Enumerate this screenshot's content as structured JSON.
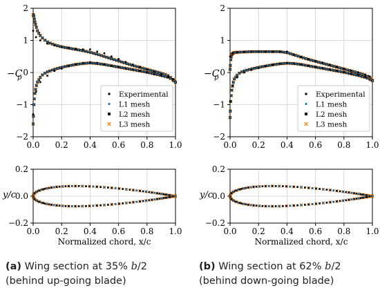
{
  "chart_data": [
    {
      "id": "a_cp",
      "type": "scatter",
      "ylabel": "−C",
      "ylabel_sub": "p",
      "xlim": [
        0,
        1
      ],
      "ylim": [
        -2,
        2
      ],
      "xticks": [
        "0.0",
        "0.2",
        "0.4",
        "0.6",
        "0.8",
        "1.0"
      ],
      "yticks": [
        "2",
        "1",
        "0",
        "−1",
        "−2"
      ],
      "grid": true,
      "legend_position": "lower-right",
      "legend": [
        "Experimental",
        "L1 mesh",
        "L2 mesh",
        "L3 mesh"
      ],
      "series": [
        {
          "name": "Experimental",
          "marker": "black-square-small",
          "upper": [
            [
              0.0,
              1.3
            ],
            [
              0.02,
              1.1
            ],
            [
              0.05,
              1.0
            ],
            [
              0.1,
              0.9
            ],
            [
              0.15,
              0.85
            ],
            [
              0.2,
              0.8
            ],
            [
              0.25,
              0.77
            ],
            [
              0.3,
              0.74
            ],
            [
              0.35,
              0.72
            ],
            [
              0.4,
              0.72
            ],
            [
              0.45,
              0.65
            ],
            [
              0.5,
              0.6
            ],
            [
              0.55,
              0.5
            ],
            [
              0.6,
              0.42
            ],
            [
              0.65,
              0.33
            ],
            [
              0.7,
              0.25
            ],
            [
              0.75,
              0.18
            ],
            [
              0.8,
              0.1
            ],
            [
              0.85,
              0.03
            ],
            [
              0.9,
              -0.05
            ],
            [
              0.95,
              -0.12
            ],
            [
              0.98,
              -0.2
            ]
          ],
          "lower": [
            [
              0.0,
              -1.3
            ],
            [
              0.02,
              -0.6
            ],
            [
              0.05,
              -0.3
            ],
            [
              0.1,
              -0.1
            ],
            [
              0.15,
              0.05
            ],
            [
              0.2,
              0.12
            ],
            [
              0.25,
              0.2
            ],
            [
              0.3,
              0.26
            ],
            [
              0.35,
              0.3
            ],
            [
              0.4,
              0.32
            ],
            [
              0.45,
              0.3
            ],
            [
              0.5,
              0.26
            ],
            [
              0.55,
              0.22
            ],
            [
              0.6,
              0.18
            ],
            [
              0.65,
              0.13
            ],
            [
              0.7,
              0.09
            ],
            [
              0.75,
              0.05
            ],
            [
              0.8,
              0.0
            ],
            [
              0.85,
              -0.05
            ],
            [
              0.9,
              -0.1
            ],
            [
              0.95,
              -0.15
            ]
          ]
        },
        {
          "name": "L1 mesh",
          "marker": "blue-dot"
        },
        {
          "name": "L2 mesh",
          "marker": "black-square"
        },
        {
          "name": "L3 mesh",
          "marker": "orange-x",
          "upper": [
            [
              0.0,
              1.8
            ],
            [
              0.005,
              1.75
            ],
            [
              0.01,
              1.6
            ],
            [
              0.02,
              1.45
            ],
            [
              0.03,
              1.3
            ],
            [
              0.05,
              1.15
            ],
            [
              0.07,
              1.05
            ],
            [
              0.1,
              0.95
            ],
            [
              0.15,
              0.86
            ],
            [
              0.2,
              0.8
            ],
            [
              0.25,
              0.76
            ],
            [
              0.3,
              0.72
            ],
            [
              0.35,
              0.68
            ],
            [
              0.4,
              0.63
            ],
            [
              0.45,
              0.57
            ],
            [
              0.5,
              0.5
            ],
            [
              0.55,
              0.43
            ],
            [
              0.6,
              0.36
            ],
            [
              0.65,
              0.29
            ],
            [
              0.7,
              0.22
            ],
            [
              0.75,
              0.16
            ],
            [
              0.8,
              0.1
            ],
            [
              0.85,
              0.04
            ],
            [
              0.9,
              -0.02
            ],
            [
              0.95,
              -0.1
            ],
            [
              0.98,
              -0.2
            ],
            [
              1.0,
              -0.3
            ]
          ],
          "lower": [
            [
              0.0,
              -1.6
            ],
            [
              0.005,
              -1.0
            ],
            [
              0.01,
              -0.7
            ],
            [
              0.02,
              -0.45
            ],
            [
              0.03,
              -0.3
            ],
            [
              0.05,
              -0.15
            ],
            [
              0.07,
              -0.05
            ],
            [
              0.1,
              0.02
            ],
            [
              0.15,
              0.1
            ],
            [
              0.2,
              0.16
            ],
            [
              0.25,
              0.21
            ],
            [
              0.3,
              0.25
            ],
            [
              0.35,
              0.28
            ],
            [
              0.4,
              0.3
            ],
            [
              0.45,
              0.28
            ],
            [
              0.5,
              0.25
            ],
            [
              0.55,
              0.21
            ],
            [
              0.6,
              0.17
            ],
            [
              0.65,
              0.13
            ],
            [
              0.7,
              0.09
            ],
            [
              0.75,
              0.05
            ],
            [
              0.8,
              0.01
            ],
            [
              0.85,
              -0.04
            ],
            [
              0.9,
              -0.09
            ],
            [
              0.95,
              -0.15
            ],
            [
              0.98,
              -0.22
            ],
            [
              1.0,
              -0.3
            ]
          ]
        }
      ]
    },
    {
      "id": "b_cp",
      "type": "scatter",
      "ylabel": "−C",
      "ylabel_sub": "p",
      "xlim": [
        0,
        1
      ],
      "ylim": [
        -2,
        2
      ],
      "xticks": [
        "0.0",
        "0.2",
        "0.4",
        "0.6",
        "0.8",
        "1.0"
      ],
      "yticks": [
        "2",
        "1",
        "0",
        "−1",
        "−2"
      ],
      "grid": true,
      "legend_position": "lower-right",
      "legend": [
        "Experimental",
        "L1 mesh",
        "L2 mesh",
        "L3 mesh"
      ],
      "series": [
        {
          "name": "Experimental",
          "marker": "black-square-small",
          "upper": [
            [
              0.0,
              0.5
            ],
            [
              0.02,
              0.6
            ],
            [
              0.05,
              0.63
            ],
            [
              0.1,
              0.64
            ],
            [
              0.15,
              0.65
            ],
            [
              0.2,
              0.65
            ],
            [
              0.25,
              0.65
            ],
            [
              0.3,
              0.65
            ],
            [
              0.35,
              0.65
            ],
            [
              0.4,
              0.65
            ],
            [
              0.45,
              0.55
            ],
            [
              0.5,
              0.48
            ],
            [
              0.55,
              0.42
            ],
            [
              0.6,
              0.36
            ],
            [
              0.65,
              0.3
            ],
            [
              0.7,
              0.24
            ],
            [
              0.75,
              0.18
            ],
            [
              0.8,
              0.12
            ],
            [
              0.85,
              0.06
            ],
            [
              0.9,
              0.0
            ],
            [
              0.95,
              -0.07
            ],
            [
              0.98,
              -0.12
            ]
          ],
          "lower": [
            [
              0.0,
              -0.9
            ],
            [
              0.02,
              -0.4
            ],
            [
              0.05,
              -0.15
            ],
            [
              0.1,
              0.0
            ],
            [
              0.15,
              0.08
            ],
            [
              0.2,
              0.14
            ],
            [
              0.25,
              0.2
            ],
            [
              0.3,
              0.24
            ],
            [
              0.35,
              0.28
            ],
            [
              0.4,
              0.3
            ],
            [
              0.45,
              0.28
            ],
            [
              0.5,
              0.25
            ],
            [
              0.55,
              0.22
            ],
            [
              0.6,
              0.18
            ],
            [
              0.65,
              0.14
            ],
            [
              0.7,
              0.1
            ],
            [
              0.75,
              0.06
            ],
            [
              0.8,
              0.02
            ],
            [
              0.85,
              -0.03
            ],
            [
              0.9,
              -0.08
            ],
            [
              0.95,
              -0.13
            ]
          ]
        },
        {
          "name": "L1 mesh",
          "marker": "blue-dot"
        },
        {
          "name": "L2 mesh",
          "marker": "black-square"
        },
        {
          "name": "L3 mesh",
          "marker": "orange-x",
          "upper": [
            [
              0.0,
              0.1
            ],
            [
              0.005,
              0.4
            ],
            [
              0.01,
              0.55
            ],
            [
              0.02,
              0.6
            ],
            [
              0.03,
              0.62
            ],
            [
              0.05,
              0.63
            ],
            [
              0.1,
              0.64
            ],
            [
              0.15,
              0.65
            ],
            [
              0.2,
              0.65
            ],
            [
              0.25,
              0.65
            ],
            [
              0.3,
              0.65
            ],
            [
              0.35,
              0.65
            ],
            [
              0.4,
              0.62
            ],
            [
              0.45,
              0.55
            ],
            [
              0.5,
              0.48
            ],
            [
              0.55,
              0.41
            ],
            [
              0.6,
              0.35
            ],
            [
              0.65,
              0.29
            ],
            [
              0.7,
              0.23
            ],
            [
              0.75,
              0.17
            ],
            [
              0.8,
              0.11
            ],
            [
              0.85,
              0.05
            ],
            [
              0.9,
              -0.01
            ],
            [
              0.95,
              -0.08
            ],
            [
              0.98,
              -0.15
            ],
            [
              1.0,
              -0.25
            ]
          ],
          "lower": [
            [
              0.0,
              -1.4
            ],
            [
              0.005,
              -0.9
            ],
            [
              0.01,
              -0.6
            ],
            [
              0.02,
              -0.35
            ],
            [
              0.03,
              -0.2
            ],
            [
              0.05,
              -0.08
            ],
            [
              0.07,
              0.0
            ],
            [
              0.1,
              0.05
            ],
            [
              0.15,
              0.11
            ],
            [
              0.2,
              0.16
            ],
            [
              0.25,
              0.2
            ],
            [
              0.3,
              0.24
            ],
            [
              0.35,
              0.27
            ],
            [
              0.4,
              0.29
            ],
            [
              0.45,
              0.28
            ],
            [
              0.5,
              0.25
            ],
            [
              0.55,
              0.21
            ],
            [
              0.6,
              0.17
            ],
            [
              0.65,
              0.13
            ],
            [
              0.7,
              0.09
            ],
            [
              0.75,
              0.05
            ],
            [
              0.8,
              0.01
            ],
            [
              0.85,
              -0.04
            ],
            [
              0.9,
              -0.09
            ],
            [
              0.95,
              -0.15
            ],
            [
              0.98,
              -0.2
            ],
            [
              1.0,
              -0.25
            ]
          ]
        }
      ]
    },
    {
      "id": "a_geom",
      "type": "scatter",
      "ylabel": "y/c",
      "xlabel": "Normalized chord, x/c",
      "xlim": [
        0,
        1
      ],
      "ylim": [
        -0.2,
        0.2
      ],
      "xticks": [
        "0.0",
        "0.2",
        "0.4",
        "0.6",
        "0.8",
        "1.0"
      ],
      "yticks": [
        "0.2",
        "0.0",
        "−0.2"
      ],
      "grid": true,
      "profile": {
        "thickness": 0.15,
        "max_y": 0.075
      }
    },
    {
      "id": "b_geom",
      "type": "scatter",
      "ylabel": "y/c",
      "xlabel": "Normalized chord, x/c",
      "xlim": [
        0,
        1
      ],
      "ylim": [
        -0.2,
        0.2
      ],
      "xticks": [
        "0.0",
        "0.2",
        "0.4",
        "0.6",
        "0.8",
        "1.0"
      ],
      "yticks": [
        "0.2",
        "0.0",
        "−0.2"
      ],
      "grid": true,
      "profile": {
        "thickness": 0.15,
        "max_y": 0.075
      }
    }
  ],
  "captions": [
    {
      "label": "(a)",
      "text_before": " Wing section at 35% ",
      "math": "b",
      "text_after": "/2 (behind up-going blade)"
    },
    {
      "label": "(b)",
      "text_before": " Wing section at 62% ",
      "math": "b",
      "text_after": "/2 (behind down-going blade)"
    }
  ],
  "colors": {
    "experimental": "#000000",
    "l1": "#1f77b4",
    "l2": "#111111",
    "l3": "#ff7f0e",
    "grid": "#cfcfcf"
  }
}
